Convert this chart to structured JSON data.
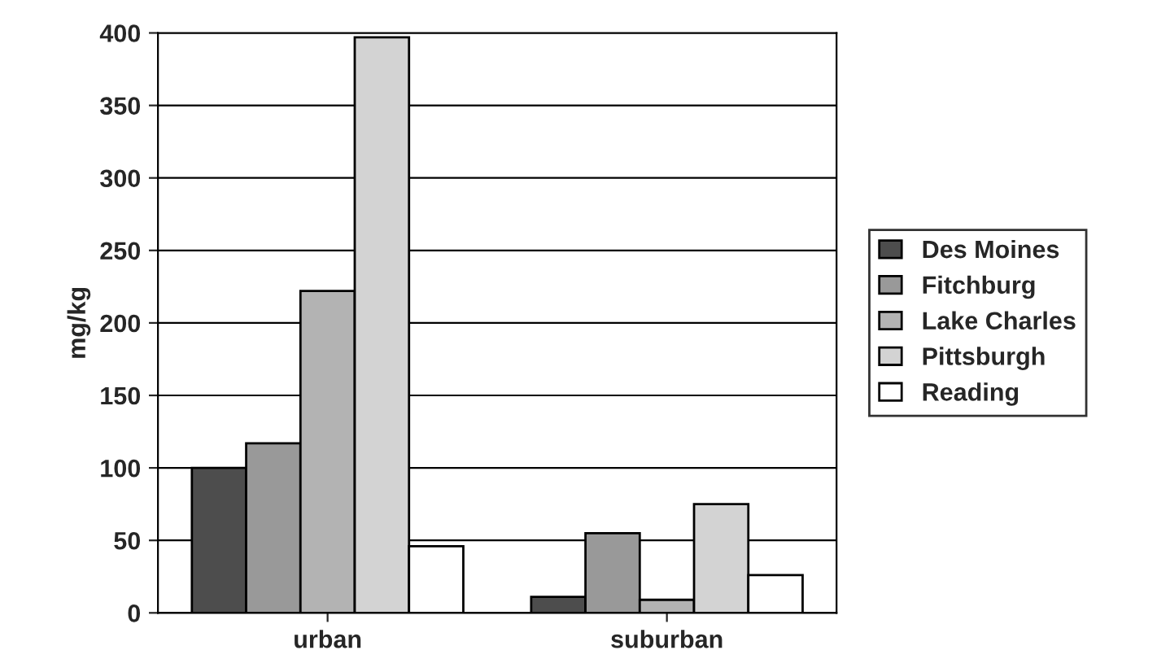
{
  "chart_data": {
    "type": "bar",
    "ylabel": "mg/kg",
    "categories": [
      "urban",
      "suburban"
    ],
    "series": [
      {
        "name": "Des Moines",
        "color": "#4d4d4d",
        "values": [
          100,
          11
        ]
      },
      {
        "name": "Fitchburg",
        "color": "#999999",
        "values": [
          117,
          55
        ]
      },
      {
        "name": "Lake Charles",
        "color": "#b3b3b3",
        "values": [
          222,
          9
        ]
      },
      {
        "name": "Pittsburgh",
        "color": "#d3d3d3",
        "values": [
          397,
          75
        ]
      },
      {
        "name": "Reading",
        "color": "#ffffff",
        "values": [
          46,
          26
        ]
      }
    ],
    "ylim": [
      0,
      400
    ],
    "yticks": [
      0,
      50,
      100,
      150,
      200,
      250,
      300,
      350,
      400
    ],
    "grid": "y",
    "legend": "right"
  }
}
